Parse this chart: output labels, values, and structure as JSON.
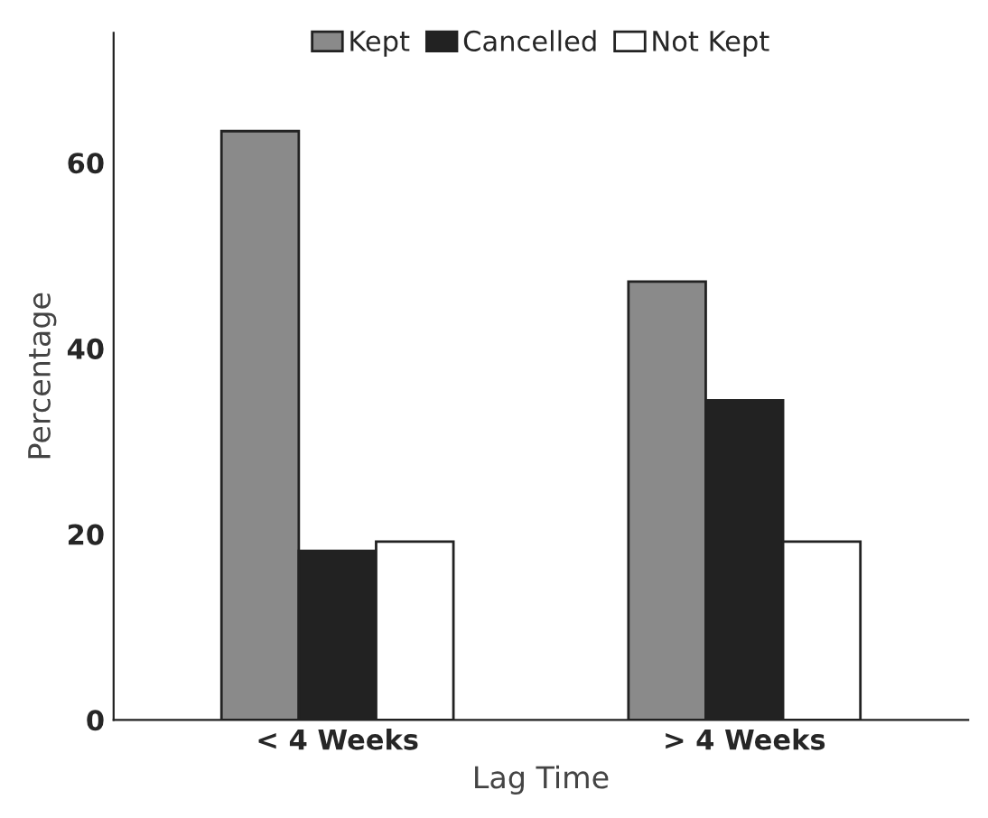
{
  "chart_data": {
    "type": "bar",
    "xlabel": "Lag Time",
    "ylabel": "Percentage",
    "categories": [
      "< 4 Weeks",
      "> 4 Weeks"
    ],
    "series": [
      {
        "name": "Kept",
        "color": "#8a8a8a",
        "values": [
          63.4,
          47.2
        ]
      },
      {
        "name": "Cancelled",
        "color": "#222222",
        "values": [
          18.2,
          34.4
        ]
      },
      {
        "name": "Not Kept",
        "color": "#ffffff",
        "values": [
          19.2,
          19.2
        ]
      }
    ],
    "ylim": [
      0,
      74
    ],
    "yticks": [
      0,
      20,
      40,
      60
    ],
    "grid": false,
    "legend": "top"
  }
}
